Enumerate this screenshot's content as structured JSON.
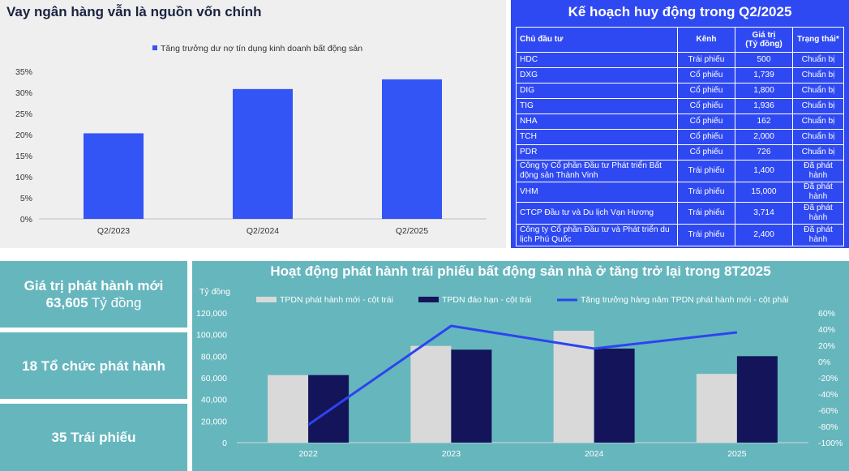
{
  "left_chart": {
    "title": "Vay ngân hàng vẫn là nguồn vốn chính",
    "legend": "Tăng trưởng dư nợ tín dụng kinh doanh bất động sản",
    "bar_color": "#3355f5"
  },
  "right_table": {
    "title": "Kế hoạch huy động trong Q2/2025",
    "headers": [
      "Chủ đầu tư",
      "Kênh",
      "Giá trị\n(Tỷ đồng)",
      "Trạng thái*"
    ],
    "rows": [
      [
        "HDC",
        "Trái phiếu",
        "500",
        "Chuẩn bị"
      ],
      [
        "DXG",
        "Cổ phiếu",
        "1,739",
        "Chuẩn bị"
      ],
      [
        "DIG",
        "Cổ phiếu",
        "1,800",
        "Chuẩn bị"
      ],
      [
        "TIG",
        "Cổ phiếu",
        "1,936",
        "Chuẩn bị"
      ],
      [
        "NHA",
        "Cổ phiếu",
        "162",
        "Chuẩn bị"
      ],
      [
        "TCH",
        "Cổ phiếu",
        "2,000",
        "Chuẩn bị"
      ],
      [
        "PDR",
        "Cổ phiếu",
        "726",
        "Chuẩn bị"
      ],
      [
        "Công ty Cổ phần Đầu tư Phát triển Bất động sản Thành Vinh",
        "Trái phiếu",
        "1,400",
        "Đã phát hành"
      ],
      [
        "VHM",
        "Trái phiếu",
        "15,000",
        "Đã phát hành"
      ],
      [
        "CTCP Đầu tư và Du lịch Vạn Hương",
        "Trái phiếu",
        "3,714",
        "Đã phát hành"
      ],
      [
        "Công ty Cổ phần Đầu tư và Phát triển du lịch Phú Quốc",
        "Trái phiếu",
        "2,400",
        "Đã phát hành"
      ]
    ]
  },
  "stats": {
    "new_issuance_label": "Giá trị phát hành mới",
    "new_issuance_value": "63,605",
    "new_issuance_unit": " Tỷ đồng",
    "issuers": "18 Tổ chức phát hành",
    "bonds": "35 Trái phiếu"
  },
  "bottom_chart": {
    "title": "Hoạt động phát hành trái phiếu bất động sản nhà ở tăng trở lại trong 8T2025",
    "ylabel_left": "Tỷ đồng",
    "colors": {
      "new": "#d9d9d9",
      "maturity": "#14145a",
      "growth": "#2c44f0"
    }
  },
  "chart_data": [
    {
      "type": "bar",
      "categories": [
        "Q2/2023",
        "Q2/2024",
        "Q2/2025"
      ],
      "series": [
        {
          "name": "Tăng trưởng dư nợ tín dụng kinh doanh bất động sản",
          "values": [
            20.3,
            30.8,
            33.1
          ]
        }
      ],
      "ylim": [
        0,
        35
      ],
      "yticks": [
        "0%",
        "5%",
        "10%",
        "15%",
        "20%",
        "25%",
        "30%",
        "35%"
      ],
      "grid": false,
      "legend": "top"
    },
    {
      "type": "bar",
      "categories": [
        "2022",
        "2023",
        "2024",
        "2025"
      ],
      "series": [
        {
          "name": "TPDN phát hành mới - cột trái",
          "type": "bar",
          "axis": "left",
          "values": [
            62500,
            89500,
            103500,
            63605
          ]
        },
        {
          "name": "TPDN đáo hạn - cột trái",
          "type": "bar",
          "axis": "left",
          "values": [
            62500,
            86000,
            87000,
            80000
          ]
        },
        {
          "name": "Tăng trưởng hàng năm TPDN phát hành mới - cột phải",
          "type": "line",
          "axis": "right",
          "values": [
            -78,
            44,
            16,
            36
          ]
        }
      ],
      "ylim_left": [
        0,
        120000
      ],
      "yticks_left": [
        "0",
        "20,000",
        "40,000",
        "60,000",
        "80,000",
        "100,000",
        "120,000"
      ],
      "ylim_right": [
        -100,
        60
      ],
      "yticks_right": [
        "-100%",
        "-80%",
        "-60%",
        "-40%",
        "-20%",
        "0%",
        "20%",
        "40%",
        "60%"
      ],
      "grid": false,
      "legend": "top"
    }
  ]
}
